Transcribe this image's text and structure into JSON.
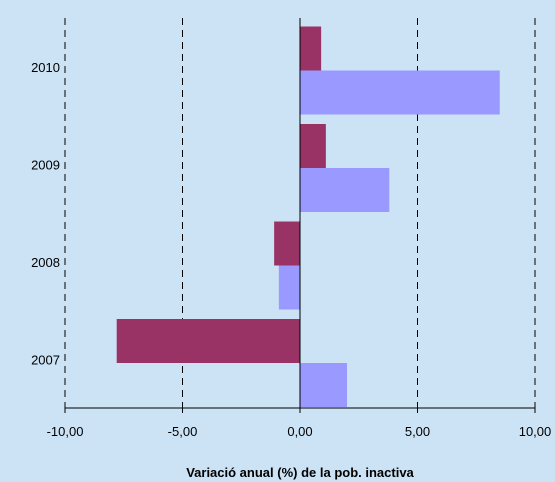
{
  "chart_data": {
    "type": "bar",
    "orientation": "horizontal",
    "categories": [
      "2007",
      "2008",
      "2009",
      "2010"
    ],
    "series": [
      {
        "values": [
          -7.8,
          -1.1,
          1.1,
          0.9
        ],
        "color": "#993366"
      },
      {
        "values": [
          2.0,
          -0.9,
          3.8,
          8.5
        ],
        "color": "#9999ff"
      }
    ],
    "xlabel": "Variació anual (%) de la pob. inactiva",
    "ylabel": "",
    "xlim": [
      -10,
      10
    ],
    "xticks": [
      -10,
      -5,
      0,
      5,
      10
    ],
    "xtick_labels": [
      "-10,00",
      "-5,00",
      "0,00",
      "5,00",
      "10,00"
    ],
    "grid": "vertical dashed",
    "legend": "none",
    "background": "#cbe3f5"
  }
}
